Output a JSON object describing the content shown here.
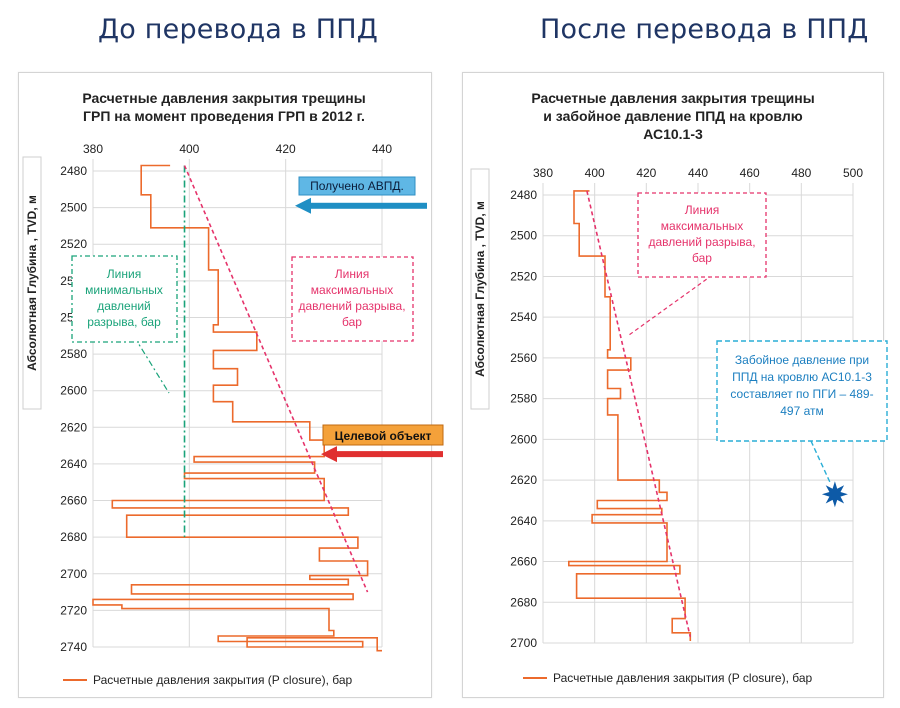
{
  "headings": {
    "before": "До перевода в  ППД",
    "after": "После перевода в  ППД"
  },
  "colors": {
    "closure": "#ec6a2c",
    "max_line": "#e5336b",
    "min_line": "#1aa37a",
    "blue_arrow": "#1f8fc4",
    "red_arrow": "#e03030",
    "burst": "#0d5aa7",
    "note_border": "#2aaed6"
  },
  "chart_data": [
    {
      "type": "line",
      "title": [
        "Расчетные давления закрытия трещины",
        "ГРП на момент проведения ГРП в 2012 г."
      ],
      "ylabel": "Абсолютная Глубина , TVD, м",
      "x_axis_position": "top",
      "xlim": [
        380,
        440
      ],
      "x_ticks": [
        "380",
        "400",
        "420",
        "440"
      ],
      "ylim": [
        2480,
        2740
      ],
      "y_ticks": [
        "2480",
        "2500",
        "2520",
        "2540",
        "2560",
        "2580",
        "2600",
        "2620",
        "2640",
        "2660",
        "2680",
        "2700",
        "2720",
        "2740"
      ],
      "y_reversed": true,
      "grid": true,
      "legend": {
        "position": "bottom",
        "label": "Расчетные давления закрытия (P closure), бар"
      },
      "series": [
        {
          "name": "Расчетные давления закрытия (P closure), бар",
          "step": true,
          "x": [
            396,
            390,
            390,
            392,
            392,
            404,
            404,
            406,
            406,
            405,
            405,
            414,
            414,
            405,
            405,
            410,
            410,
            405,
            405,
            409,
            409,
            425,
            425,
            428,
            428,
            401,
            401,
            426,
            426,
            399,
            399,
            428,
            428,
            384,
            384,
            433,
            433,
            387,
            387,
            435,
            435,
            427,
            427,
            437,
            437,
            425,
            425,
            433,
            433,
            388,
            388,
            434,
            434,
            380,
            380,
            386,
            386,
            429,
            429,
            430,
            430,
            406,
            406,
            436,
            436,
            412,
            412,
            439,
            439,
            440
          ],
          "y": [
            2477,
            2477,
            2493,
            2493,
            2511,
            2511,
            2534,
            2534,
            2564,
            2564,
            2568,
            2568,
            2578,
            2578,
            2588,
            2588,
            2597,
            2597,
            2606,
            2606,
            2617,
            2617,
            2627,
            2627,
            2636,
            2636,
            2639,
            2639,
            2645,
            2645,
            2648,
            2648,
            2660,
            2660,
            2664,
            2664,
            2668,
            2668,
            2680,
            2680,
            2686,
            2686,
            2693,
            2693,
            2701,
            2701,
            2703,
            2703,
            2706,
            2706,
            2711,
            2711,
            2714,
            2714,
            2717,
            2717,
            2719,
            2719,
            2731,
            2731,
            2734,
            2734,
            2737,
            2737,
            2740,
            2740,
            2735,
            2735,
            2742,
            2742
          ]
        }
      ],
      "reference_lines": [
        {
          "label": [
            "Линия",
            "минимальных",
            "давлений",
            "разрыва, бар"
          ],
          "x": [
            399,
            399
          ],
          "y": [
            2477,
            2680
          ]
        },
        {
          "label": [
            "Линия",
            "максимальных",
            "давлений разрыва,",
            "бар"
          ],
          "x": [
            399,
            437
          ],
          "y": [
            2477,
            2710
          ]
        }
      ],
      "annotations": [
        {
          "text": "Получено АВПД.",
          "depth": 2499
        },
        {
          "text": "Целевой объект",
          "depth": 2633
        }
      ]
    },
    {
      "type": "line",
      "title": [
        "Расчетные давления закрытия трещины",
        "и забойное давление ППД на кровлю",
        "АС10.1-3"
      ],
      "ylabel": "Абсолютная Глубина , TVD, м",
      "x_axis_position": "top",
      "xlim": [
        380,
        500
      ],
      "x_ticks": [
        "380",
        "400",
        "420",
        "440",
        "460",
        "480",
        "500"
      ],
      "ylim": [
        2480,
        2700
      ],
      "y_ticks": [
        "2480",
        "2500",
        "2520",
        "2540",
        "2560",
        "2580",
        "2600",
        "2620",
        "2640",
        "2660",
        "2680",
        "2700"
      ],
      "y_reversed": true,
      "grid": true,
      "legend": {
        "position": "bottom",
        "label": "Расчетные давления закрытия (P closure), бар"
      },
      "series": [
        {
          "name": "Расчетные давления закрытия (P closure), бар",
          "step": true,
          "x": [
            398,
            392,
            392,
            394,
            394,
            404,
            404,
            406,
            406,
            405,
            405,
            414,
            414,
            405,
            405,
            410,
            410,
            405,
            405,
            409,
            409,
            425,
            425,
            428,
            428,
            401,
            401,
            426,
            426,
            399,
            399,
            428,
            428,
            390,
            390,
            433,
            433,
            393,
            393,
            435,
            435,
            430,
            430,
            437,
            437
          ],
          "y": [
            2478,
            2478,
            2494,
            2494,
            2510,
            2510,
            2530,
            2530,
            2556,
            2556,
            2560,
            2560,
            2566,
            2566,
            2575,
            2575,
            2580,
            2580,
            2588,
            2588,
            2620,
            2620,
            2626,
            2626,
            2630,
            2630,
            2634,
            2634,
            2637,
            2637,
            2641,
            2641,
            2660,
            2660,
            2662,
            2662,
            2666,
            2666,
            2678,
            2678,
            2688,
            2688,
            2695,
            2695,
            2699
          ]
        }
      ],
      "reference_lines": [
        {
          "label": [
            "Линия",
            "максимальных",
            "давлений разрыва,",
            "бар"
          ],
          "x": [
            397,
            437
          ],
          "y": [
            2478,
            2697
          ]
        }
      ],
      "annotations": [
        {
          "text": [
            "Забойное давление при",
            "ППД на кровлю АС10.1-3",
            "составляет по ПГИ – 489-",
            "497 атм"
          ],
          "marker": {
            "x": 493,
            "y": 2627
          }
        }
      ]
    }
  ]
}
